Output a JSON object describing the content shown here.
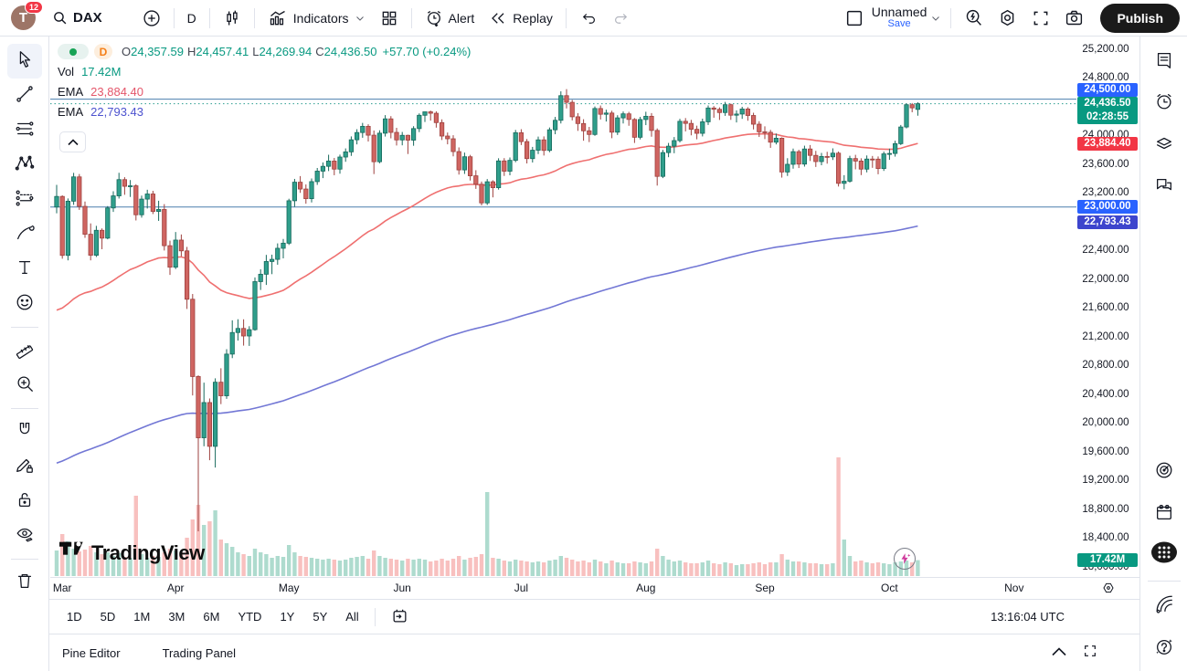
{
  "topbar": {
    "avatar_initial": "T",
    "notification_count": "12",
    "symbol": "DAX",
    "timeframe": "D",
    "indicators_label": "Indicators",
    "alert_label": "Alert",
    "replay_label": "Replay",
    "layout_name": "Unnamed",
    "save_label": "Save",
    "publish_label": "Publish"
  },
  "left_toolbar": [
    "cursor",
    "trend-line",
    "fib-retracement",
    "xabcd-pattern",
    "projection",
    "brush",
    "text",
    "emoji",
    "ruler",
    "zoom-in",
    "magnet",
    "drawing-pencil-lock",
    "lock-all",
    "hide-drawings",
    "remove-drawings"
  ],
  "right_sidebar": [
    "watchlist",
    "alerts-clock",
    "object-tree",
    "chat",
    "ideas-target",
    "calendar",
    "apps-grid",
    "streams",
    "help"
  ],
  "legend": {
    "ohlc": [
      {
        "k": "O",
        "v": "24,357.59"
      },
      {
        "k": "H",
        "v": "24,457.41"
      },
      {
        "k": "L",
        "v": "24,269.94"
      },
      {
        "k": "C",
        "v": "24,436.50"
      }
    ],
    "change": "+57.70 (+0.24%)",
    "vol_label": "Vol",
    "vol_value": "17.42M",
    "ema_rows": [
      {
        "label": "EMA",
        "value": "23,884.40",
        "color": "#e4566a"
      },
      {
        "label": "EMA",
        "value": "22,793.43",
        "color": "#4c52cf"
      }
    ]
  },
  "watermark_text": "TradingView",
  "chart_data": {
    "type": "candlestick",
    "title": "DAX daily with volume, EMA(50), EMA(200)",
    "x_axis_months": [
      {
        "label": "Mar",
        "idx": 1
      },
      {
        "label": "Apr",
        "idx": 21
      },
      {
        "label": "May",
        "idx": 41
      },
      {
        "label": "Jun",
        "idx": 61
      },
      {
        "label": "Jul",
        "idx": 82
      },
      {
        "label": "Aug",
        "idx": 104
      },
      {
        "label": "Sep",
        "idx": 125
      },
      {
        "label": "Oct",
        "idx": 147
      },
      {
        "label": "Nov",
        "idx": 169
      }
    ],
    "y_axis": {
      "max": 25200,
      "min": 18000,
      "step": 400
    },
    "hlines": [
      24500,
      23000
    ],
    "close_line": 24436.5,
    "indicators": [
      {
        "type": "EMA",
        "length": 50,
        "seed": 21500,
        "color": "#ef7070"
      },
      {
        "type": "EMA",
        "length": 200,
        "seed": 19400,
        "color": "#7277d5"
      }
    ],
    "colors": {
      "up_fill": "#2f9e8b",
      "up_stroke": "#17695c",
      "down_fill": "#cf6561",
      "down_stroke": "#9e423f",
      "vol_up": "rgba(76,175,147,0.45)",
      "vol_down": "rgba(239,116,113,0.45)",
      "hline": "#4c7fae",
      "close_dotted": "#2a9d8f"
    },
    "candles": [
      [
        23000,
        23308,
        22912,
        23147,
        28
      ],
      [
        23147,
        23162,
        22281,
        22327,
        46
      ],
      [
        22327,
        23119,
        22258,
        23081,
        38
      ],
      [
        23081,
        23475,
        23030,
        23419,
        30
      ],
      [
        23419,
        23459,
        22960,
        23009,
        27
      ],
      [
        23009,
        23076,
        22571,
        22621,
        29
      ],
      [
        22621,
        22772,
        22258,
        22329,
        33
      ],
      [
        22329,
        22738,
        22305,
        22676,
        26
      ],
      [
        22676,
        22702,
        22413,
        22567,
        24
      ],
      [
        22567,
        23013,
        22551,
        22987,
        26
      ],
      [
        22987,
        23219,
        22932,
        23155,
        22
      ],
      [
        23155,
        23476,
        23118,
        23381,
        25
      ],
      [
        23381,
        23415,
        23170,
        23288,
        21
      ],
      [
        23288,
        23375,
        23140,
        23295,
        20
      ],
      [
        23295,
        23317,
        22813,
        22892,
        88
      ],
      [
        22892,
        23158,
        22852,
        23110,
        24
      ],
      [
        23110,
        23240,
        22979,
        23181,
        20
      ],
      [
        23181,
        23225,
        22902,
        22939,
        22
      ],
      [
        22939,
        23087,
        22807,
        22966,
        21
      ],
      [
        22966,
        23040,
        22395,
        22462,
        26
      ],
      [
        22462,
        22532,
        22055,
        22163,
        30
      ],
      [
        22163,
        22652,
        22137,
        22540,
        28
      ],
      [
        22540,
        22618,
        22313,
        22390,
        26
      ],
      [
        22390,
        22445,
        21582,
        21717,
        42
      ],
      [
        21717,
        21790,
        20379,
        20642,
        62
      ],
      [
        20642,
        20659,
        18489,
        19790,
        78
      ],
      [
        19790,
        20557,
        19672,
        20280,
        56
      ],
      [
        20280,
        20337,
        19478,
        19671,
        60
      ],
      [
        19671,
        20617,
        19376,
        20563,
        72
      ],
      [
        20563,
        20757,
        20258,
        20374,
        40
      ],
      [
        20374,
        21022,
        20332,
        20954,
        36
      ],
      [
        20954,
        21424,
        20898,
        21254,
        32
      ],
      [
        21254,
        21439,
        21142,
        21311,
        26
      ],
      [
        21311,
        21438,
        21072,
        21206,
        24
      ],
      [
        21206,
        21342,
        21068,
        21294,
        22
      ],
      [
        21294,
        22021,
        21279,
        21962,
        30
      ],
      [
        21962,
        22133,
        21846,
        22065,
        26
      ],
      [
        22065,
        22334,
        21916,
        22242,
        24
      ],
      [
        22242,
        22337,
        22066,
        22272,
        20
      ],
      [
        22272,
        22494,
        22197,
        22426,
        22
      ],
      [
        22426,
        22556,
        22285,
        22497,
        21
      ],
      [
        22497,
        23115,
        22472,
        23087,
        34
      ],
      [
        23087,
        23391,
        23003,
        23345,
        26
      ],
      [
        23345,
        23430,
        23197,
        23250,
        22
      ],
      [
        23250,
        23314,
        23046,
        23116,
        21
      ],
      [
        23116,
        23397,
        23063,
        23353,
        20
      ],
      [
        23353,
        23543,
        23308,
        23499,
        19
      ],
      [
        23499,
        23620,
        23402,
        23566,
        18
      ],
      [
        23566,
        23727,
        23500,
        23639,
        19
      ],
      [
        23639,
        23682,
        23442,
        23527,
        18
      ],
      [
        23527,
        23729,
        23463,
        23695,
        17
      ],
      [
        23695,
        23815,
        23629,
        23767,
        18
      ],
      [
        23767,
        23982,
        23711,
        23935,
        20
      ],
      [
        23935,
        24082,
        23871,
        24036,
        21
      ],
      [
        24036,
        24170,
        23963,
        24122,
        22
      ],
      [
        24122,
        24151,
        23911,
        23999,
        19
      ],
      [
        23999,
        24064,
        23458,
        23630,
        28
      ],
      [
        23630,
        24067,
        23608,
        24027,
        22
      ],
      [
        24027,
        24278,
        23980,
        24226,
        20
      ],
      [
        24226,
        24264,
        23955,
        24038,
        19
      ],
      [
        24038,
        24101,
        23856,
        23933,
        18
      ],
      [
        23933,
        24044,
        23858,
        23997,
        17
      ],
      [
        23997,
        24006,
        23737,
        23930,
        19
      ],
      [
        23930,
        24124,
        23852,
        24091,
        18
      ],
      [
        24091,
        24302,
        24042,
        24276,
        19
      ],
      [
        24276,
        24326,
        24183,
        24324,
        18
      ],
      [
        24324,
        24341,
        24202,
        24304,
        16
      ],
      [
        24304,
        24331,
        24104,
        24174,
        17
      ],
      [
        24174,
        24219,
        23932,
        23987,
        19
      ],
      [
        23987,
        24036,
        23872,
        23949,
        17
      ],
      [
        23949,
        23998,
        23704,
        23771,
        19
      ],
      [
        23771,
        23829,
        23451,
        23516,
        22
      ],
      [
        23516,
        23757,
        23460,
        23699,
        18
      ],
      [
        23699,
        23725,
        23368,
        23434,
        20
      ],
      [
        23434,
        23512,
        23252,
        23317,
        21
      ],
      [
        23317,
        23354,
        23022,
        23057,
        24
      ],
      [
        23057,
        23389,
        23028,
        23351,
        92
      ],
      [
        23351,
        23372,
        23134,
        23269,
        20
      ],
      [
        23269,
        23678,
        23242,
        23641,
        19
      ],
      [
        23641,
        23680,
        23432,
        23498,
        17
      ],
      [
        23498,
        23689,
        23442,
        23649,
        16
      ],
      [
        23649,
        24072,
        23623,
        24033,
        18
      ],
      [
        24033,
        24082,
        23862,
        23910,
        17
      ],
      [
        23910,
        23946,
        23606,
        23673,
        16
      ],
      [
        23673,
        23836,
        23619,
        23790,
        15
      ],
      [
        23790,
        23979,
        23737,
        23934,
        16
      ],
      [
        23934,
        23982,
        23716,
        23787,
        15
      ],
      [
        23787,
        24106,
        23762,
        24074,
        17
      ],
      [
        24074,
        24253,
        24012,
        24206,
        18
      ],
      [
        24206,
        24609,
        24162,
        24549,
        22
      ],
      [
        24549,
        24639,
        24371,
        24456,
        20
      ],
      [
        24456,
        24489,
        24205,
        24255,
        18
      ],
      [
        24255,
        24306,
        24059,
        24161,
        16
      ],
      [
        24161,
        24221,
        23922,
        24060,
        17
      ],
      [
        24060,
        24114,
        23903,
        24009,
        15
      ],
      [
        24009,
        24398,
        23991,
        24370,
        18
      ],
      [
        24370,
        24412,
        24217,
        24290,
        16
      ],
      [
        24290,
        24354,
        24189,
        24307,
        14
      ],
      [
        24307,
        24339,
        23957,
        24041,
        17
      ],
      [
        24041,
        24277,
        24002,
        24240,
        15
      ],
      [
        24240,
        24328,
        24162,
        24296,
        14
      ],
      [
        24296,
        24324,
        24130,
        24218,
        14
      ],
      [
        24218,
        24237,
        23891,
        23970,
        16
      ],
      [
        23970,
        24254,
        23940,
        24217,
        15
      ],
      [
        24217,
        24325,
        24139,
        24262,
        14
      ],
      [
        24262,
        24306,
        23977,
        24065,
        16
      ],
      [
        24065,
        24093,
        23298,
        23426,
        30
      ],
      [
        23426,
        23795,
        23402,
        23757,
        22
      ],
      [
        23757,
        23891,
        23693,
        23846,
        18
      ],
      [
        23846,
        23973,
        23748,
        23924,
        16
      ],
      [
        23924,
        24227,
        23898,
        24192,
        17
      ],
      [
        24192,
        24237,
        24052,
        24163,
        15
      ],
      [
        24163,
        24212,
        23997,
        24081,
        14
      ],
      [
        24081,
        24131,
        23942,
        24025,
        14
      ],
      [
        24025,
        24229,
        23982,
        24185,
        15
      ],
      [
        24185,
        24413,
        24142,
        24377,
        17
      ],
      [
        24377,
        24404,
        24242,
        24359,
        14
      ],
      [
        24359,
        24386,
        24211,
        24314,
        13
      ],
      [
        24314,
        24462,
        24268,
        24423,
        15
      ],
      [
        24423,
        24438,
        24212,
        24277,
        14
      ],
      [
        24277,
        24345,
        24176,
        24293,
        12
      ],
      [
        24293,
        24394,
        24226,
        24363,
        13
      ],
      [
        24363,
        24388,
        24200,
        24273,
        13
      ],
      [
        24273,
        24311,
        24079,
        24152,
        14
      ],
      [
        24152,
        24193,
        23974,
        24046,
        15
      ],
      [
        24046,
        24122,
        23945,
        24039,
        13
      ],
      [
        24039,
        24073,
        23823,
        23902,
        15
      ],
      [
        23902,
        24021,
        23871,
        23957,
        15
      ],
      [
        23957,
        23968,
        23409,
        23487,
        24
      ],
      [
        23487,
        23679,
        23432,
        23594,
        18
      ],
      [
        23594,
        23812,
        23534,
        23770,
        16
      ],
      [
        23770,
        23796,
        23542,
        23597,
        16
      ],
      [
        23597,
        23853,
        23562,
        23807,
        15
      ],
      [
        23807,
        23862,
        23640,
        23718,
        14
      ],
      [
        23718,
        23781,
        23557,
        23632,
        14
      ],
      [
        23632,
        23752,
        23581,
        23703,
        13
      ],
      [
        23703,
        23768,
        23603,
        23698,
        13
      ],
      [
        23698,
        23816,
        23654,
        23749,
        14
      ],
      [
        23749,
        23772,
        23285,
        23329,
        130
      ],
      [
        23329,
        23443,
        23246,
        23359,
        40
      ],
      [
        23359,
        23712,
        23339,
        23674,
        22
      ],
      [
        23674,
        23726,
        23524,
        23639,
        16
      ],
      [
        23639,
        23678,
        23444,
        23527,
        17
      ],
      [
        23527,
        23717,
        23482,
        23667,
        15
      ],
      [
        23667,
        23710,
        23545,
        23666,
        14
      ],
      [
        23666,
        23703,
        23456,
        23535,
        15
      ],
      [
        23535,
        23771,
        23502,
        23739,
        14
      ],
      [
        23739,
        23812,
        23656,
        23745,
        13
      ],
      [
        23745,
        23922,
        23701,
        23881,
        15
      ],
      [
        23881,
        24141,
        23862,
        24113,
        16
      ],
      [
        24113,
        24439,
        24093,
        24423,
        17
      ],
      [
        24423,
        24446,
        24318,
        24379,
        15
      ],
      [
        24357.59,
        24457.41,
        24269.94,
        24436.5,
        17.42
      ]
    ]
  },
  "price_scale_badges": [
    {
      "price": 24500,
      "label": "24,500.00",
      "color": "#2962ff",
      "dy": -10.5
    },
    {
      "price": 24436.5,
      "label": "24,436.50",
      "sub": "02:28:55",
      "color": "#089981"
    },
    {
      "price": 23884.4,
      "label": "23,884.40",
      "color": "#f23645"
    },
    {
      "price": 23000,
      "label": "23,000.00",
      "color": "#2962ff"
    },
    {
      "price": 22793.43,
      "label": "22,793.43",
      "color": "#3d45cd"
    },
    {
      "vol": 17.42,
      "label": "17.42M",
      "color": "#089981"
    }
  ],
  "bottom_toolbar": {
    "ranges": [
      "1D",
      "5D",
      "1M",
      "3M",
      "6M",
      "YTD",
      "1Y",
      "5Y",
      "All"
    ],
    "clock": "13:16:04 UTC"
  },
  "bottom_panel": {
    "tabs": [
      "Pine Editor",
      "Trading Panel"
    ]
  }
}
